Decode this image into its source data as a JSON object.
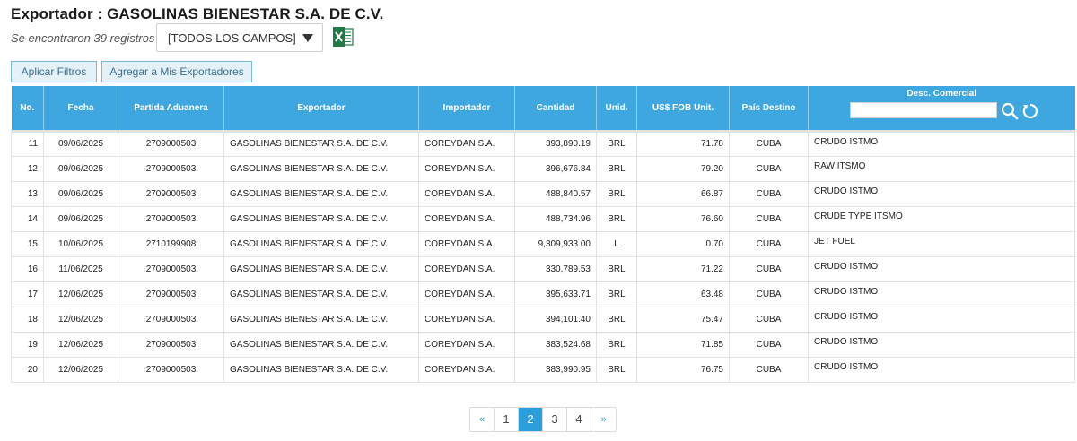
{
  "header": {
    "title": "Exportador : GASOLINAS BIENESTAR S.A. DE C.V.",
    "records_found": "Se encontraron 39 registros",
    "field_select": "[TODOS LOS CAMPOS]",
    "excel_icon": "excel-icon"
  },
  "toolbar": {
    "apply_filters": "Aplicar Filtros",
    "add_exporters": "Agregar a Mis Exportadores"
  },
  "table": {
    "columns": [
      "No.",
      "Fecha",
      "Partida Aduanera",
      "Exportador",
      "Importador",
      "Cantidad",
      "Unid.",
      "US$ FOB Unit.",
      "País Destino",
      "Desc. Comercial"
    ],
    "rows": [
      [
        "11",
        "09/06/2025",
        "2709000503",
        "GASOLINAS BIENESTAR S.A. DE C.V.",
        "COREYDAN S.A.",
        "393,890.19",
        "BRL",
        "71.78",
        "CUBA",
        "CRUDO ISTMO"
      ],
      [
        "12",
        "09/06/2025",
        "2709000503",
        "GASOLINAS BIENESTAR S.A. DE C.V.",
        "COREYDAN S.A.",
        "396,676.84",
        "BRL",
        "79.20",
        "CUBA",
        "RAW ITSMO"
      ],
      [
        "13",
        "09/06/2025",
        "2709000503",
        "GASOLINAS BIENESTAR S.A. DE C.V.",
        "COREYDAN S.A.",
        "488,840.57",
        "BRL",
        "66.87",
        "CUBA",
        "CRUDO ISTMO"
      ],
      [
        "14",
        "09/06/2025",
        "2709000503",
        "GASOLINAS BIENESTAR S.A. DE C.V.",
        "COREYDAN S.A.",
        "488,734.96",
        "BRL",
        "76.60",
        "CUBA",
        "CRUDE TYPE ITSMO"
      ],
      [
        "15",
        "10/06/2025",
        "2710199908",
        "GASOLINAS BIENESTAR S.A. DE C.V.",
        "COREYDAN S.A.",
        "9,309,933.00",
        "L",
        "0.70",
        "CUBA",
        "JET FUEL"
      ],
      [
        "16",
        "11/06/2025",
        "2709000503",
        "GASOLINAS BIENESTAR S.A. DE C.V.",
        "COREYDAN S.A.",
        "330,789.53",
        "BRL",
        "71.22",
        "CUBA",
        "CRUDO ISTMO"
      ],
      [
        "17",
        "12/06/2025",
        "2709000503",
        "GASOLINAS BIENESTAR S.A. DE C.V.",
        "COREYDAN S.A.",
        "395,633.71",
        "BRL",
        "63.48",
        "CUBA",
        "CRUDO ISTMO"
      ],
      [
        "18",
        "12/06/2025",
        "2709000503",
        "GASOLINAS BIENESTAR S.A. DE C.V.",
        "COREYDAN S.A.",
        "394,101.40",
        "BRL",
        "75.47",
        "CUBA",
        "CRUDO ISTMO"
      ],
      [
        "19",
        "12/06/2025",
        "2709000503",
        "GASOLINAS BIENESTAR S.A. DE C.V.",
        "COREYDAN S.A.",
        "383,524.68",
        "BRL",
        "71.85",
        "CUBA",
        "CRUDO ISTMO"
      ],
      [
        "20",
        "12/06/2025",
        "2709000503",
        "GASOLINAS BIENESTAR S.A. DE C.V.",
        "COREYDAN S.A.",
        "383,990.95",
        "BRL",
        "76.75",
        "CUBA",
        "CRUDO ISTMO"
      ]
    ]
  },
  "pagination": {
    "prev": "«",
    "pages": [
      "1",
      "2",
      "3",
      "4"
    ],
    "current": "2",
    "next": "»"
  },
  "colors": {
    "header_bg": "#3ea7e0",
    "active_page": "#2b9fdc",
    "button_bg": "#e4f1f9"
  }
}
